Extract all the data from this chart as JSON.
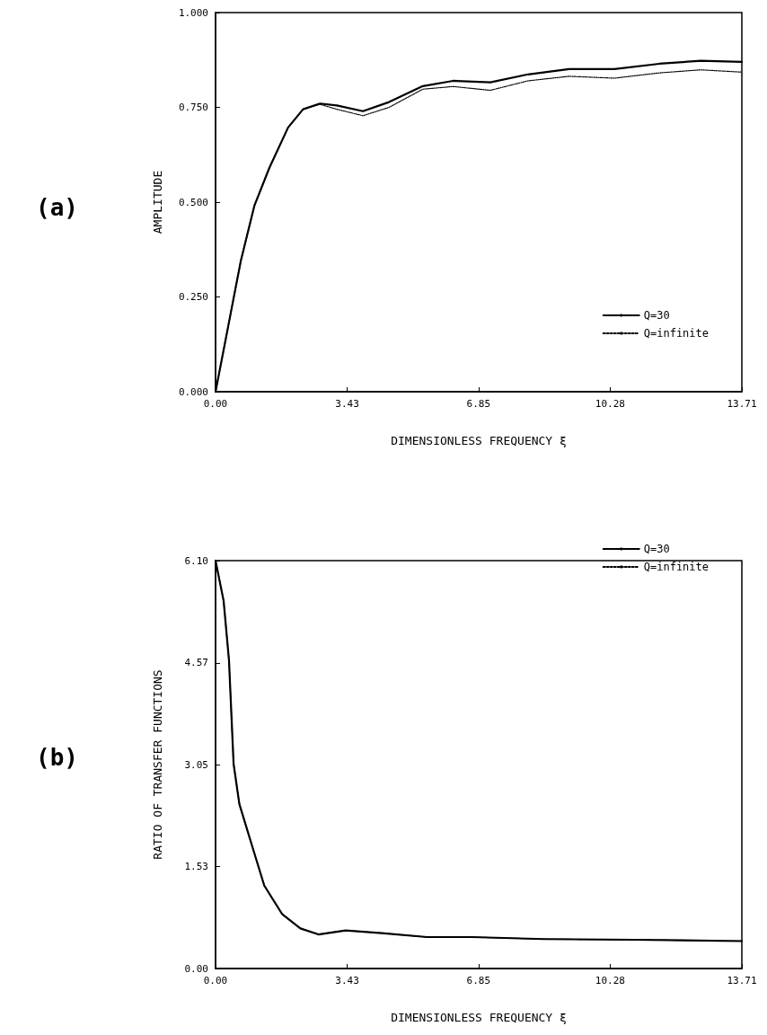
{
  "chart_data": [
    {
      "type": "line",
      "ylabel": "AMPLITUDE",
      "xlabel": "DIMENSIONLESS FREQUENCY ξ",
      "annotations": [
        "(a)"
      ],
      "xlim": [
        0,
        13.71
      ],
      "ylim": [
        0,
        1
      ],
      "xticks": [
        {
          "value": 0,
          "label": "0.00"
        },
        3.43,
        6.85,
        10.28,
        13.71
      ],
      "yticks": [
        {
          "value": 0,
          "label": "0.000"
        },
        {
          "value": 0.25,
          "label": "0.250"
        },
        {
          "value": 0.5,
          "label": "0.500"
        },
        {
          "value": 0.75,
          "label": "0.750"
        },
        {
          "value": 1,
          "label": "1.000"
        }
      ],
      "legend": "bottom right",
      "grid": false,
      "marker": "none",
      "x": [
        0,
        0.66,
        1.01,
        1.4,
        1.89,
        2.28,
        2.72,
        3.16,
        3.84,
        4.52,
        5.4,
        6.19,
        7.16,
        8.14,
        9.21,
        10.39,
        11.56,
        12.64,
        13.71
      ],
      "series": [
        {
          "name": "Q=30",
          "color": "#000000",
          "line_style": "solid",
          "values": [
            0,
            0.346,
            0.49,
            0.59,
            0.697,
            0.745,
            0.76,
            0.755,
            0.74,
            0.764,
            0.806,
            0.82,
            0.816,
            0.837,
            0.851,
            0.851,
            0.865,
            0.873,
            0.87
          ]
        },
        {
          "name": "Q=infinite",
          "color": "#000000",
          "line_style": "dotted",
          "values": [
            0,
            0.346,
            0.49,
            0.59,
            0.697,
            0.745,
            0.758,
            0.745,
            0.728,
            0.75,
            0.798,
            0.805,
            0.795,
            0.82,
            0.832,
            0.827,
            0.841,
            0.849,
            0.843
          ]
        }
      ]
    },
    {
      "type": "line",
      "ylabel": "RATIO OF TRANSFER FUNCTIONS",
      "xlabel": "DIMENSIONLESS FREQUENCY ξ",
      "annotations": [
        "(b)"
      ],
      "xlim": [
        0,
        13.71
      ],
      "ylim": [
        0,
        6.1
      ],
      "xticks": [
        {
          "value": 0,
          "label": "0.00"
        },
        3.43,
        6.85,
        10.28,
        13.71
      ],
      "yticks": [
        {
          "value": 0,
          "label": "0.00"
        },
        1.53,
        3.05,
        4.57,
        {
          "value": 6.1,
          "label": "6.10"
        }
      ],
      "legend": "top right",
      "grid": false,
      "marker": "none",
      "x": [
        0,
        0.21,
        0.35,
        0.47,
        0.62,
        0.97,
        1.27,
        1.74,
        2.21,
        2.68,
        3.39,
        4.33,
        5.51,
        6.68,
        8.56,
        10.92,
        13.71
      ],
      "series": [
        {
          "name": "Q=30",
          "color": "#000000",
          "line_style": "solid",
          "values": [
            6.1,
            5.5,
            4.61,
            3.06,
            2.46,
            1.8,
            1.24,
            0.81,
            0.6,
            0.51,
            0.57,
            0.53,
            0.47,
            0.47,
            0.44,
            0.43,
            0.41
          ]
        },
        {
          "name": "Q=infinite",
          "color": "#000000",
          "line_style": "dotted",
          "values": [
            6.1,
            5.5,
            4.61,
            3.06,
            2.46,
            1.8,
            1.24,
            0.81,
            0.6,
            0.51,
            0.57,
            0.53,
            0.47,
            0.47,
            0.44,
            0.43,
            0.41
          ]
        }
      ]
    }
  ]
}
